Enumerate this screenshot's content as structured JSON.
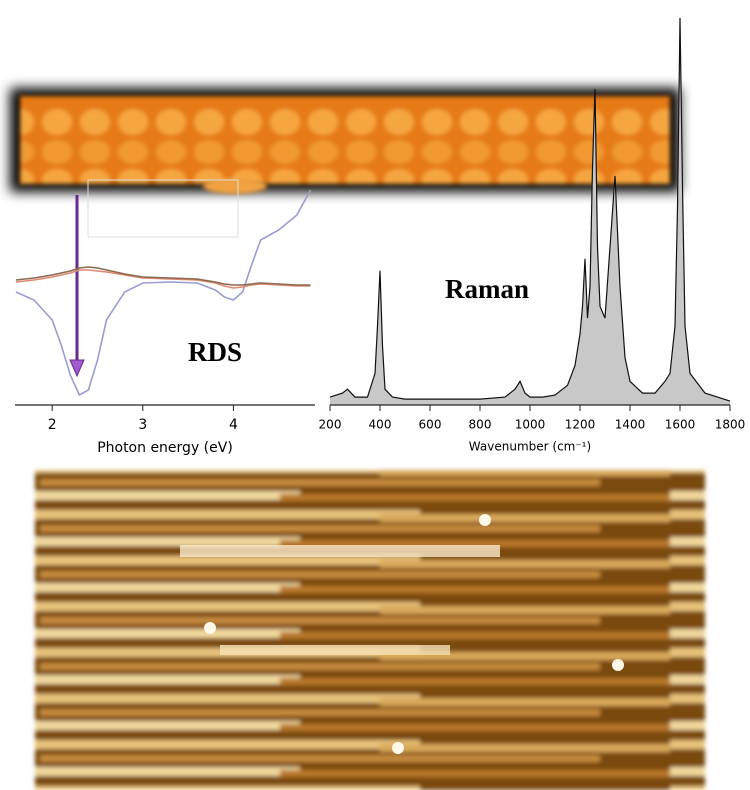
{
  "chart_data": [
    {
      "type": "line",
      "xlabel": "Photon energy (eV)",
      "annotation": "RDS",
      "x": [
        1.6,
        1.8,
        2.0,
        2.1,
        2.2,
        2.3,
        2.4,
        2.5,
        2.6,
        2.8,
        3.0,
        3.3,
        3.6,
        3.8,
        3.9,
        4.0,
        4.1,
        4.2,
        4.3,
        4.5,
        4.7,
        4.85
      ],
      "series": [
        {
          "color": "#9a9cd2",
          "values": [
            -0.12,
            -0.2,
            -0.4,
            -0.65,
            -0.95,
            -1.15,
            -1.1,
            -0.8,
            -0.4,
            -0.12,
            -0.03,
            -0.02,
            -0.03,
            -0.1,
            -0.17,
            -0.2,
            -0.12,
            0.15,
            0.4,
            0.5,
            0.65,
            0.9
          ]
        },
        {
          "color": "#e08a70",
          "values": [
            -0.02,
            0,
            0.03,
            0.05,
            0.07,
            0.1,
            0.1,
            0.09,
            0.08,
            0.05,
            0.02,
            0.01,
            0,
            -0.03,
            -0.06,
            -0.08,
            -0.07,
            -0.05,
            -0.04,
            -0.05,
            -0.06,
            -0.06
          ]
        },
        {
          "color": "#8a6a52",
          "values": [
            0,
            0.02,
            0.05,
            0.07,
            0.09,
            0.12,
            0.13,
            0.12,
            0.1,
            0.06,
            0.03,
            0.02,
            0.01,
            -0.02,
            -0.04,
            -0.05,
            -0.05,
            -0.04,
            -0.03,
            -0.04,
            -0.05,
            -0.05
          ]
        }
      ],
      "xlim": [
        1.59,
        4.9
      ],
      "xticks": [
        2,
        3,
        4
      ],
      "ylim": [
        -1.25,
        0.95
      ]
    },
    {
      "type": "area",
      "xlabel": "Wavenumber (cm⁻¹)",
      "annotation": "Raman",
      "x": [
        200,
        250,
        270,
        300,
        350,
        380,
        390,
        400,
        410,
        420,
        450,
        500,
        600,
        700,
        800,
        900,
        940,
        960,
        980,
        1000,
        1050,
        1100,
        1150,
        1180,
        1200,
        1210,
        1220,
        1230,
        1240,
        1250,
        1260,
        1270,
        1280,
        1300,
        1320,
        1340,
        1360,
        1380,
        1400,
        1450,
        1500,
        1540,
        1560,
        1580,
        1590,
        1600,
        1610,
        1620,
        1640,
        1700,
        1750,
        1800
      ],
      "values": [
        2,
        3,
        4,
        2,
        2,
        8,
        20,
        34,
        15,
        4,
        2,
        1.5,
        1.5,
        1.5,
        1.5,
        2,
        4,
        6,
        3,
        2,
        2,
        2.5,
        5,
        10,
        18,
        25,
        37,
        22,
        30,
        60,
        80,
        40,
        25,
        22,
        40,
        58,
        30,
        12,
        6,
        3,
        3,
        6,
        8,
        20,
        50,
        98,
        55,
        20,
        8,
        3,
        2,
        1
      ],
      "color": "#c8c8c8",
      "line_color": "#111111",
      "xlim": [
        200,
        1800
      ],
      "xticks": [
        200,
        400,
        600,
        800,
        1000,
        1200,
        1400,
        1600,
        1800
      ],
      "ylim": [
        0,
        100
      ]
    }
  ]
}
